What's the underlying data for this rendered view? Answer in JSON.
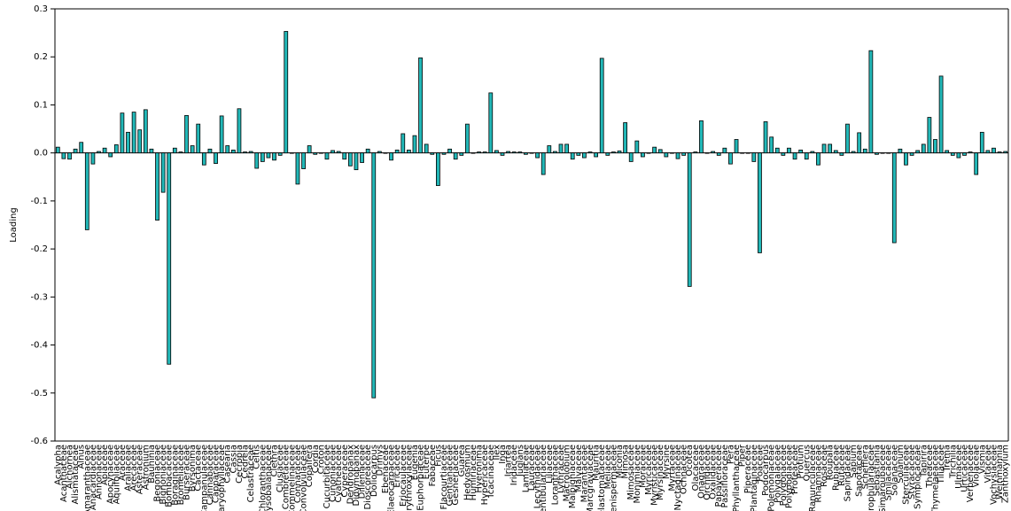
{
  "chart_data": {
    "type": "bar",
    "ylabel": "Loading",
    "categories": [
      "Acalypha",
      "Acanthaceae",
      "Alchornea",
      "Alismataceae",
      "Alnus",
      "Amaranthaceae",
      "Anacardiaceae",
      "Annonaceae",
      "Apiaceae",
      "Apocynaceae",
      "Aquifoliaceae",
      "Araceae",
      "Araliaceae",
      "Arecaceae",
      "Asteraceae",
      "Astronium",
      "Bauhinia",
      "Begoniaceae",
      "Bignoniaceae",
      "Bombacaceae",
      "Boraginaceae",
      "Bromeliaceae",
      "Burseraceae",
      "Byrsonima",
      "Cactaceae",
      "Campanulaceae",
      "Cannabaceae",
      "Capparaceae",
      "Caryophyllaceae",
      "Casearia",
      "Cassia",
      "Cecropia",
      "Cedrela",
      "Celastraceae",
      "Celtis",
      "Chloranthaceae",
      "Chrysobalanaceae",
      "Clethra",
      "Clusiaceae",
      "Combretaceae",
      "Commelinaceae",
      "Connaraceae",
      "Convolvulaceae",
      "Copaifera",
      "Cordia",
      "Croton",
      "Cucurbitaceae",
      "Cunoniaceae",
      "Cyatheaceae",
      "Cyperaceae",
      "Dendropanax",
      "Didymopanax",
      "Dilleniaceae",
      "Dioscoreaceae",
      "Doliocarpus",
      "Drimys",
      "Ebenaceae",
      "Elaeocarpaceae",
      "Ericaceae",
      "Eriocaulaceae",
      "Erythroxylaceae",
      "Eugenia",
      "Euphorbiaceae",
      "Euterpe",
      "Fabaceae",
      "Ficus",
      "Flacourtiaceae",
      "Gentianaceae",
      "Gesneriaceae",
      "Guarea",
      "Hedyosmum",
      "Humiriaceae",
      "Hyeronima",
      "Hypericaceae",
      "Icacinaceae",
      "Ilex",
      "Inga",
      "Iriartea",
      "Iridaceae",
      "Juglans",
      "Lamiaceae",
      "Lauraceae",
      "Lecythidaceae",
      "Lentibulariaceae",
      "Liliaceae",
      "Loranthaceae",
      "Lythraceae",
      "Macrolobium",
      "Malpighiaceae",
      "Malvaceae",
      "Marantaceae",
      "Marcgraviaceae",
      "Mauritia",
      "Melastomataceae",
      "Meliaceae",
      "Menispermaceae",
      "Miconia",
      "Mimosa",
      "Mimosaceae",
      "Monimiaceae",
      "Moraceae",
      "Myricaceae",
      "Myristicaceae",
      "Myrsinaceae",
      "Myrsine",
      "Myrtaceae",
      "Nyctaginaceae",
      "Ochnaceae",
      "Ocotea",
      "Olacaceae",
      "Onagraceae",
      "Orchidaceae",
      "Oxalidaceae",
      "Papaveraceae",
      "Passifloraceae",
      "Pera",
      "Phyllanthaceae",
      "Piper",
      "Piperaceae",
      "Plantaginaceae",
      "Poaceae",
      "Podocarpus",
      "Polemoniaceae",
      "Polygalaceae",
      "Polygonaceae",
      "Polypodiaceae",
      "Proteaceae",
      "Protium",
      "Quercus",
      "Ranunculaceae",
      "Rhamnaceae",
      "Rosaceae",
      "Roupala",
      "Rubiaceae",
      "Rutaceae",
      "Sapindaceae",
      "Sapium",
      "Sapotaceae",
      "Schefflera",
      "Scrophulariaceae",
      "Sebastiania",
      "Simaroubaceae",
      "Smilacaceae",
      "Solanaceae",
      "Solanum",
      "Sterculiaceae",
      "Styracaceae",
      "Symplocaceae",
      "Tapirira",
      "Theaceae",
      "Thymelaeaceae",
      "Tiliaceae",
      "Trema",
      "Trichilia",
      "Ulmaceae",
      "Urticaceae",
      "Verbenaceae",
      "Violaceae",
      "Vismia",
      "Vitaceae",
      "Vochysiaceae",
      "Weinmannia",
      "Zanthoxylum"
    ],
    "values": [
      0.012,
      -0.012,
      -0.013,
      0.008,
      0.022,
      -0.16,
      -0.023,
      0.003,
      0.01,
      -0.008,
      0.017,
      0.083,
      0.043,
      0.085,
      0.048,
      0.09,
      0.008,
      -0.14,
      -0.082,
      -0.44,
      0.01,
      0.002,
      0.078,
      0.015,
      0.06,
      -0.025,
      0.008,
      -0.022,
      0.077,
      0.015,
      0.006,
      0.092,
      0.002,
      0.003,
      -0.032,
      -0.018,
      -0.01,
      -0.015,
      -0.005,
      0.253,
      0,
      -0.065,
      -0.033,
      0.015,
      -0.003,
      0,
      -0.013,
      0.005,
      0.003,
      -0.013,
      -0.027,
      -0.035,
      -0.02,
      0.008,
      -0.51,
      0.003,
      0,
      -0.015,
      0.006,
      0.04,
      0.006,
      0.036,
      0.198,
      0.018,
      -0.003,
      -0.068,
      -0.003,
      0.008,
      -0.013,
      -0.005,
      0.06,
      0,
      0.002,
      0.002,
      0.125,
      0.005,
      -0.005,
      0.003,
      0.002,
      0.002,
      -0.003,
      0,
      -0.01,
      -0.045,
      0.015,
      0.003,
      0.018,
      0.018,
      -0.013,
      -0.005,
      -0.01,
      0.002,
      -0.008,
      0.197,
      -0.005,
      0.002,
      0.004,
      0.063,
      -0.018,
      0.025,
      -0.008,
      0,
      0.012,
      0.007,
      -0.008,
      0,
      -0.012,
      -0.005,
      -0.278,
      0.002,
      0.067,
      0,
      0.003,
      -0.005,
      0.01,
      -0.023,
      0.028,
      0,
      0,
      -0.018,
      -0.208,
      0.065,
      0.033,
      0.01,
      -0.005,
      0.01,
      -0.013,
      0.006,
      -0.013,
      0.003,
      -0.025,
      0.018,
      0.018,
      0.005,
      -0.005,
      0.06,
      0.003,
      0.042,
      0.008,
      0.213,
      -0.003,
      0,
      0,
      -0.187,
      0.008,
      -0.025,
      -0.005,
      0.005,
      0.018,
      0.074,
      0.028,
      0.16,
      0.005,
      -0.005,
      -0.01,
      -0.005,
      0.002,
      -0.045,
      0.043,
      0.005,
      0.01,
      0.002,
      0.003
    ],
    "color": "#22b8b8",
    "ylim": [
      -0.6,
      0.3
    ],
    "yticks": [
      0.3,
      0.2,
      0.1,
      {
        "value": 0,
        "label": "0.0"
      },
      -0.1,
      -0.2,
      -0.3,
      -0.4,
      -0.5,
      -0.6
    ]
  }
}
